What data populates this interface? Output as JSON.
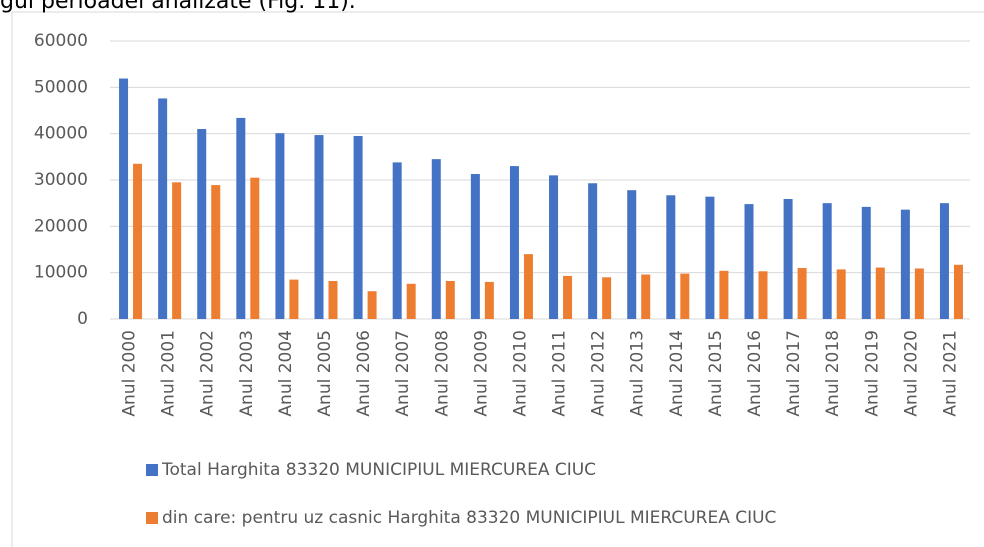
{
  "chart_data": {
    "type": "bar",
    "annotation": "gul perioadei analizate (Fig. 11).",
    "categories": [
      "Anul 2000",
      "Anul 2001",
      "Anul 2002",
      "Anul 2003",
      "Anul 2004",
      "Anul 2005",
      "Anul 2006",
      "Anul 2007",
      "Anul 2008",
      "Anul 2009",
      "Anul 2010",
      "Anul 2011",
      "Anul 2012",
      "Anul 2013",
      "Anul 2014",
      "Anul 2015",
      "Anul 2016",
      "Anul 2017",
      "Anul 2018",
      "Anul 2019",
      "Anul 2020",
      "Anul 2021"
    ],
    "series": [
      {
        "name": "Total Harghita 83320 MUNICIPIUL MIERCUREA CIUC",
        "color": "#4472c4",
        "values": [
          51900,
          47600,
          41000,
          43400,
          40100,
          39700,
          39500,
          33800,
          34500,
          31300,
          33000,
          31000,
          29300,
          27800,
          26700,
          26400,
          24800,
          25900,
          25000,
          24200,
          23600,
          25000
        ]
      },
      {
        "name": "din care: pentru uz casnic Harghita 83320 MUNICIPIUL MIERCUREA CIUC",
        "color": "#ed7d31",
        "values": [
          33500,
          29500,
          28900,
          30500,
          8500,
          8200,
          6000,
          7600,
          8200,
          8000,
          14000,
          9300,
          9000,
          9600,
          9800,
          10400,
          10300,
          11000,
          10700,
          11100,
          10900,
          11700
        ]
      }
    ],
    "ylim": [
      0,
      60000
    ],
    "yticks": [
      0,
      10000,
      20000,
      30000,
      40000,
      50000,
      60000
    ],
    "grid": true
  }
}
